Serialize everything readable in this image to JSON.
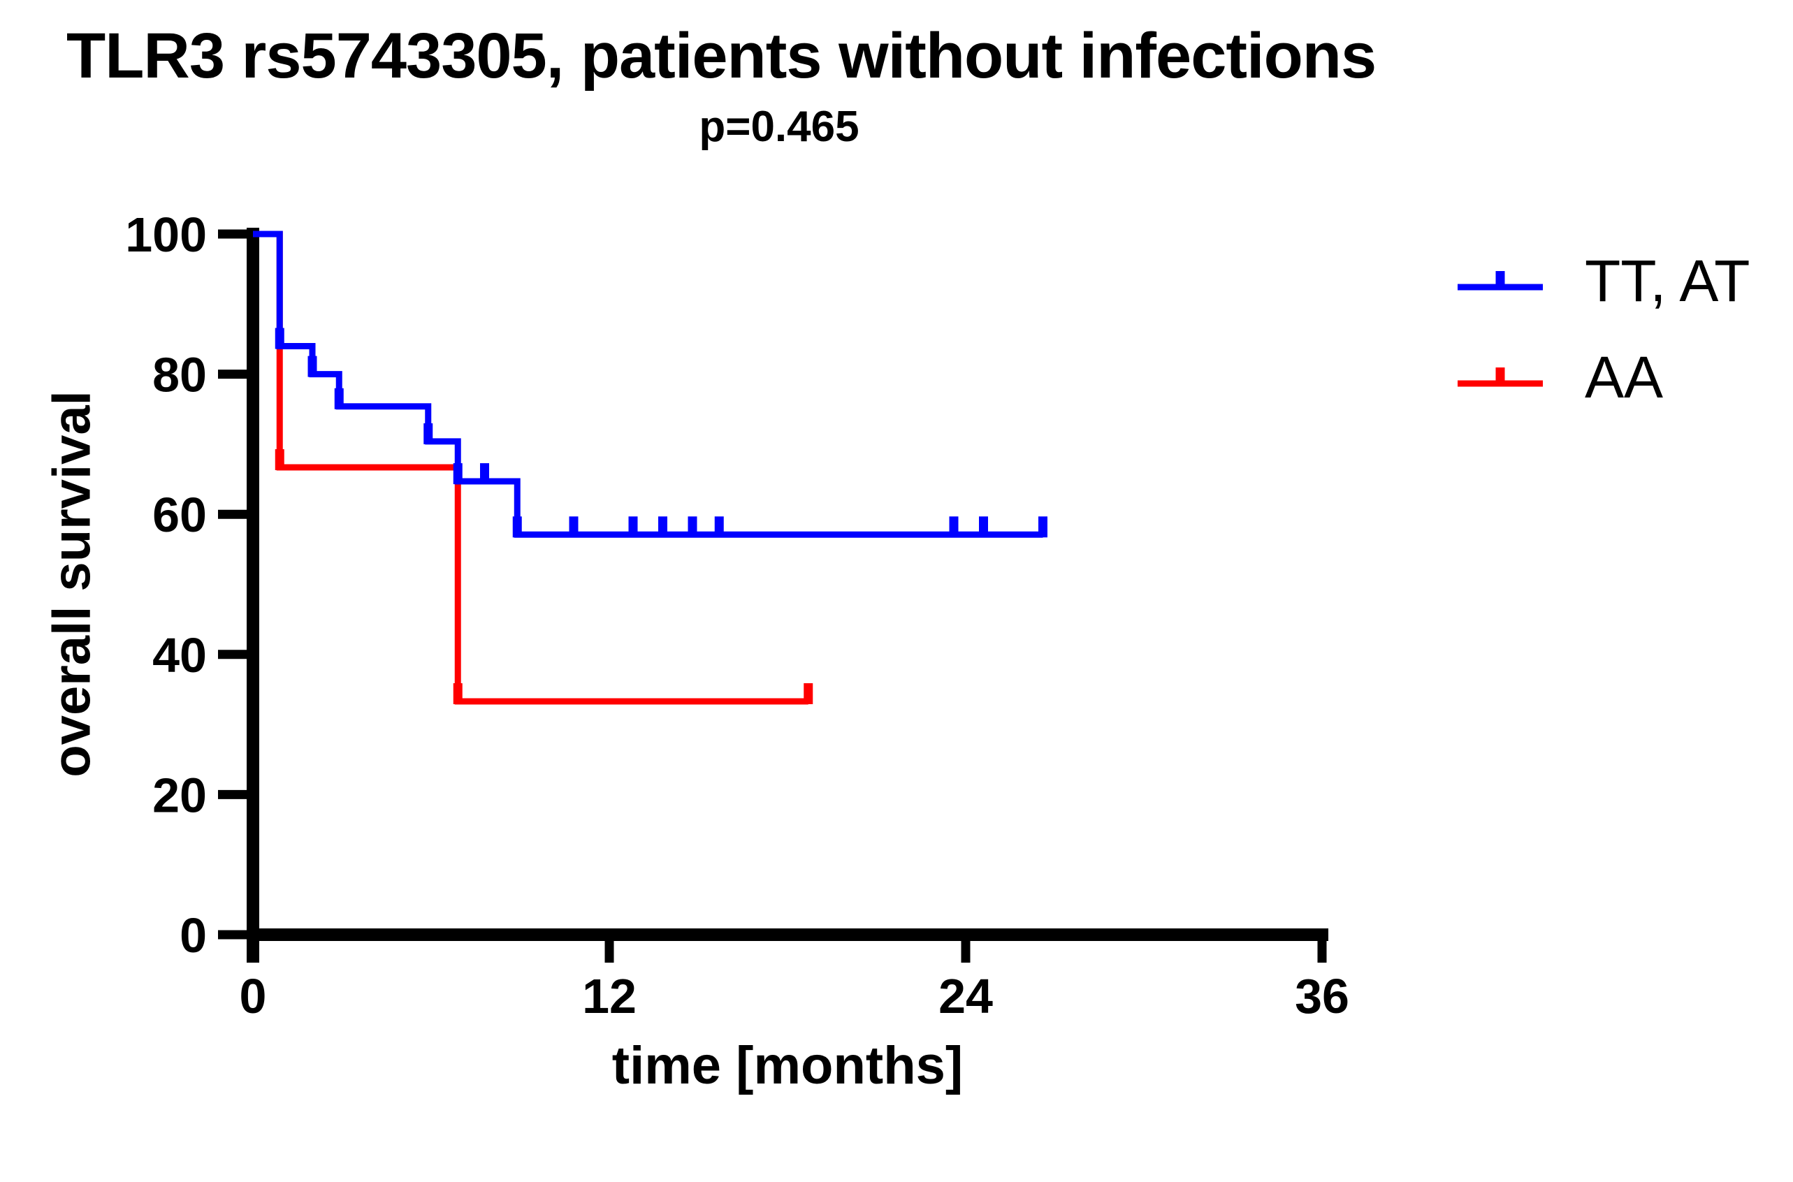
{
  "chart_data": {
    "type": "line",
    "variant": "kaplan-meier-step-curve",
    "title": "TLR3 rs5743305, patients without infections",
    "subtitle": "p=0.465",
    "xlabel": "time [months]",
    "ylabel": "overall survival",
    "xlim": [
      0,
      36
    ],
    "ylim": [
      0,
      100
    ],
    "xticks": [
      0,
      12,
      24,
      36
    ],
    "yticks": [
      0,
      20,
      40,
      60,
      80,
      100
    ],
    "grid": false,
    "legend_position": "right-top",
    "axis_color": "#000000",
    "series": [
      {
        "name": "TT, AT",
        "color": "#0000ff",
        "steps": [
          [
            0,
            100
          ],
          [
            0.9,
            84
          ],
          [
            2.0,
            80
          ],
          [
            2.9,
            75.4
          ],
          [
            5.9,
            70.4
          ],
          [
            6.9,
            64.7
          ],
          [
            8.9,
            57.1
          ]
        ],
        "end_time": 26.6,
        "censor_marks": [
          [
            0.9,
            84
          ],
          [
            2.0,
            80
          ],
          [
            2.9,
            75.4
          ],
          [
            5.9,
            70.4
          ],
          [
            6.9,
            64.7
          ],
          [
            7.8,
            64.7
          ],
          [
            8.9,
            57.1
          ],
          [
            10.8,
            57.1
          ],
          [
            12.8,
            57.1
          ],
          [
            13.8,
            57.1
          ],
          [
            14.8,
            57.1
          ],
          [
            15.7,
            57.1
          ],
          [
            23.6,
            57.1
          ],
          [
            24.6,
            57.1
          ],
          [
            26.6,
            57.1
          ]
        ]
      },
      {
        "name": "AA",
        "color": "#ff0000",
        "steps": [
          [
            0,
            100
          ],
          [
            0.9,
            66.7
          ],
          [
            6.9,
            33.3
          ]
        ],
        "end_time": 18.7,
        "censor_marks": [
          [
            0.9,
            66.7
          ],
          [
            6.9,
            33.3
          ],
          [
            18.7,
            33.3
          ]
        ]
      }
    ]
  }
}
